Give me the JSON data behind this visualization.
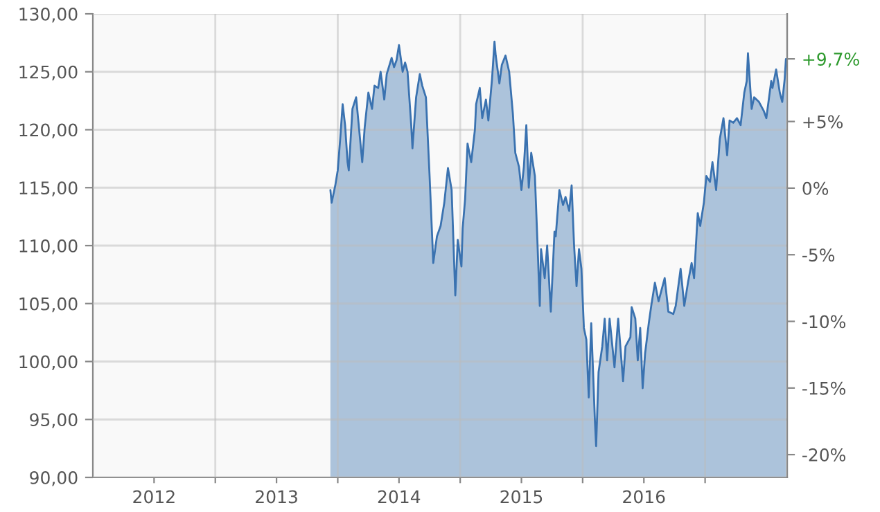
{
  "chart_data": {
    "type": "area",
    "x": [
      2013.94,
      2013.95,
      2013.98,
      2014.0,
      2014.02,
      2014.04,
      2014.06,
      2014.08,
      2014.09,
      2014.12,
      2014.15,
      2014.2,
      2014.22,
      2014.25,
      2014.28,
      2014.3,
      2014.33,
      2014.35,
      2014.38,
      2014.4,
      2014.44,
      2014.46,
      2014.48,
      2014.5,
      2014.53,
      2014.55,
      2014.57,
      2014.6,
      2014.61,
      2014.64,
      2014.67,
      2014.69,
      2014.72,
      2014.75,
      2014.78,
      2014.81,
      2014.84,
      2014.87,
      2014.9,
      2014.93,
      2014.96,
      2014.98,
      2015.01,
      2015.02,
      2015.04,
      2015.06,
      2015.09,
      2015.12,
      2015.13,
      2015.16,
      2015.18,
      2015.21,
      2015.23,
      2015.26,
      2015.28,
      2015.29,
      2015.32,
      2015.34,
      2015.37,
      2015.4,
      2015.43,
      2015.45,
      2015.48,
      2015.5,
      2015.52,
      2015.54,
      2015.56,
      2015.58,
      2015.61,
      2015.63,
      2015.65,
      2015.66,
      2015.69,
      2015.71,
      2015.74,
      2015.77,
      2015.78,
      2015.81,
      2015.84,
      2015.86,
      2015.89,
      2015.91,
      2015.93,
      2015.95,
      2015.97,
      2015.99,
      2016.01,
      2016.03,
      2016.05,
      2016.07,
      2016.1,
      2016.11,
      2016.13,
      2016.16,
      2016.18,
      2016.2,
      2016.22,
      2016.26,
      2016.29,
      2016.33,
      2016.35,
      2016.39,
      2016.4,
      2016.43,
      2016.45,
      2016.47,
      2016.49,
      2016.51,
      2016.54,
      2016.56,
      2016.59,
      2016.62,
      2016.67,
      2016.7,
      2016.74,
      2016.76,
      2016.8,
      2016.83,
      2016.86,
      2016.89,
      2016.91,
      2016.94,
      2016.96,
      2016.99,
      2017.01,
      2017.04,
      2017.06,
      2017.09,
      2017.12,
      2017.15,
      2017.18,
      2017.2,
      2017.23,
      2017.26,
      2017.29,
      2017.32,
      2017.34,
      2017.35,
      2017.38,
      2017.4,
      2017.44,
      2017.48,
      2017.5,
      2017.54,
      2017.55,
      2017.58,
      2017.61,
      2017.63,
      2017.65,
      2017.66
    ],
    "series": [
      {
        "color": "#3a72b0",
        "values": [
          114.8,
          113.7,
          115.2,
          116.5,
          119.2,
          122.2,
          120.4,
          117.2,
          116.5,
          121.8,
          122.8,
          117.2,
          120.2,
          123.2,
          121.8,
          123.8,
          123.6,
          125.0,
          122.6,
          124.8,
          126.2,
          125.4,
          126.0,
          127.3,
          125.0,
          125.8,
          125.0,
          120.4,
          118.4,
          122.8,
          124.8,
          123.8,
          122.8,
          116.0,
          108.5,
          110.8,
          111.7,
          113.7,
          116.7,
          114.8,
          105.7,
          110.5,
          108.2,
          111.5,
          114.0,
          118.8,
          117.2,
          120.0,
          122.2,
          123.6,
          121.0,
          122.6,
          120.8,
          124.4,
          127.6,
          126.4,
          124.0,
          125.6,
          126.4,
          125.0,
          121.4,
          118.0,
          116.8,
          114.8,
          116.8,
          120.4,
          115.0,
          118.0,
          116.0,
          110.5,
          104.8,
          109.7,
          107.2,
          110.0,
          104.3,
          111.2,
          110.8,
          114.8,
          113.5,
          114.2,
          113.0,
          115.2,
          110.0,
          106.5,
          109.7,
          108.0,
          102.9,
          101.9,
          96.9,
          103.3,
          94.9,
          92.7,
          99.1,
          101.3,
          103.7,
          100.1,
          103.7,
          99.5,
          103.7,
          98.3,
          101.3,
          102.1,
          104.7,
          103.7,
          100.1,
          102.9,
          97.7,
          100.7,
          103.3,
          104.8,
          106.8,
          105.2,
          107.2,
          104.3,
          104.1,
          104.8,
          108.0,
          104.8,
          106.8,
          108.5,
          107.2,
          112.8,
          111.7,
          113.7,
          116.0,
          115.5,
          117.2,
          114.8,
          119.2,
          121.0,
          117.8,
          120.8,
          120.6,
          121.0,
          120.4,
          123.2,
          124.2,
          126.6,
          121.8,
          122.8,
          122.4,
          121.6,
          121.0,
          124.2,
          123.6,
          125.2,
          123.2,
          122.4,
          124.4,
          126.1
        ]
      }
    ],
    "xlim": [
      2012.0,
      2017.67
    ],
    "xticks": [
      {
        "value": 2012.5,
        "label": "2012"
      },
      {
        "value": 2013.0,
        "label": null
      },
      {
        "value": 2013.5,
        "label": "2013"
      },
      {
        "value": 2014.0,
        "label": null
      },
      {
        "value": 2014.5,
        "label": "2014"
      },
      {
        "value": 2015.0,
        "label": null
      },
      {
        "value": 2015.5,
        "label": "2015"
      },
      {
        "value": 2016.0,
        "label": null
      },
      {
        "value": 2016.5,
        "label": "2016"
      },
      {
        "value": 2017.0,
        "label": null
      }
    ],
    "ylim": [
      90,
      130
    ],
    "yticks": [
      {
        "value": 90,
        "label": "90,00"
      },
      {
        "value": 95,
        "label": "95,00"
      },
      {
        "value": 100,
        "label": "100,00"
      },
      {
        "value": 105,
        "label": "105,00"
      },
      {
        "value": 110,
        "label": "110,00"
      },
      {
        "value": 115,
        "label": "115,00"
      },
      {
        "value": 120,
        "label": "120,00"
      },
      {
        "value": 125,
        "label": "125,00"
      },
      {
        "value": 130,
        "label": "130,00"
      }
    ],
    "y2lim": [
      -21.71,
      13.08
    ],
    "y2ticks": [
      {
        "value": -20,
        "label": "-20%"
      },
      {
        "value": -15,
        "label": "-15%"
      },
      {
        "value": -10,
        "label": "-10%"
      },
      {
        "value": -5,
        "label": "-5%"
      },
      {
        "value": 0,
        "label": "0%"
      },
      {
        "value": 5,
        "label": "+5%"
      },
      {
        "value": 9.7,
        "label": "+9,7%"
      }
    ],
    "grid": true
  }
}
